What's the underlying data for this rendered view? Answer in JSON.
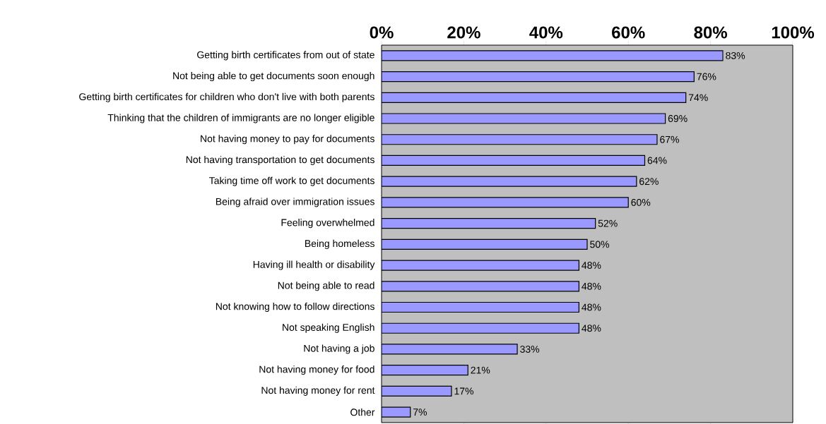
{
  "chart_data": {
    "type": "bar",
    "orientation": "horizontal",
    "categories": [
      "Getting birth certificates from out of state",
      "Not being able to get documents soon enough",
      "Getting birth certificates for children who don't live with both parents",
      "Thinking that the children of immigrants are no longer eligible",
      "Not having money to pay for documents",
      "Not having transportation to get documents",
      "Taking time off work to get documents",
      "Being afraid over immigration issues",
      "Feeling overwhelmed",
      "Being homeless",
      "Having ill health or disability",
      "Not being able to read",
      "Not knowing how to follow directions",
      "Not speaking English",
      "Not having a job",
      "Not having money for food",
      "Not having money for rent",
      "Other"
    ],
    "values": [
      83,
      76,
      74,
      69,
      67,
      64,
      62,
      60,
      52,
      50,
      48,
      48,
      48,
      48,
      33,
      21,
      17,
      7
    ],
    "value_labels": [
      "83%",
      "76%",
      "74%",
      "69%",
      "67%",
      "64%",
      "62%",
      "60%",
      "52%",
      "50%",
      "48%",
      "48%",
      "48%",
      "48%",
      "33%",
      "21%",
      "17%",
      "7%"
    ],
    "color": "#9999ff",
    "xlim": [
      0,
      100
    ],
    "xticks": [
      {
        "value": 0,
        "label": "0%"
      },
      {
        "value": 20,
        "label": "20%"
      },
      {
        "value": 40,
        "label": "40%"
      },
      {
        "value": 60,
        "label": "60%"
      },
      {
        "value": 80,
        "label": "80%"
      },
      {
        "value": 100,
        "label": "100%"
      }
    ],
    "grid": false,
    "legend": false
  }
}
